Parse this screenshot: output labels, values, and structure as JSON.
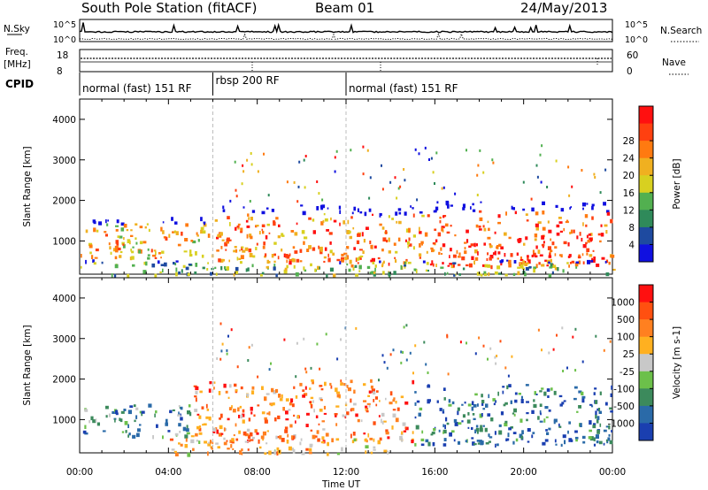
{
  "header": {
    "title": "South Pole Station (fitACF)",
    "beam": "Beam 01",
    "date": "24/May/2013"
  },
  "panel_labels": {
    "nsky": "N.Sky",
    "freq_line1": "Freq.",
    "freq_line2": "[MHz]",
    "cpid": "CPID",
    "nsearch": "N.Search",
    "nave": "Nave"
  },
  "noise_axis": {
    "top": "10^5",
    "bottom": "10^0"
  },
  "freq_axis": {
    "top": "18",
    "bottom": "8"
  },
  "nave_axis": {
    "top": "60",
    "bottom": "0"
  },
  "cpid_segments": [
    {
      "label": "normal (fast) 151 RF",
      "start_h": 0,
      "end_h": 6
    },
    {
      "label": "rbsp 200 RF",
      "start_h": 6,
      "end_h": 12
    },
    {
      "label": "normal (fast) 151 RF",
      "start_h": 12,
      "end_h": 24
    }
  ],
  "chart_data": [
    {
      "type": "heatmap",
      "title": "",
      "xlabel": "Time UT",
      "ylabel": "Slant Range [km]",
      "xlim": [
        0,
        24
      ],
      "ylim": [
        180,
        4500
      ],
      "x_ticks": [
        "00:00",
        "04:00",
        "08:00",
        "12:00",
        "16:00",
        "20:00",
        "00:00"
      ],
      "y_ticks": [
        "1000",
        "2000",
        "3000",
        "4000"
      ],
      "colorbar": {
        "label": "Power [dB]",
        "ticks": [
          "4",
          "8",
          "12",
          "16",
          "20",
          "24",
          "28"
        ],
        "colors": [
          "#1010e0",
          "#1e4aa0",
          "#2f8a5a",
          "#52b050",
          "#d8d020",
          "#f0b020",
          "#ff7a10",
          "#ff4010",
          "#ff1010"
        ]
      },
      "echo_regions": [
        {
          "t0": 0.0,
          "t1": 6.0,
          "r0": 600,
          "r1": 1600,
          "level": 5
        },
        {
          "t0": 6.0,
          "t1": 12.0,
          "r0": 500,
          "r1": 1900,
          "level": 6
        },
        {
          "t0": 12.0,
          "t1": 16.0,
          "r0": 400,
          "r1": 1900,
          "level": 6
        },
        {
          "t0": 16.0,
          "t1": 24.0,
          "r0": 400,
          "r1": 2000,
          "level": 7
        },
        {
          "t0": 0.0,
          "t1": 24.0,
          "r0": 180,
          "r1": 550,
          "level": 3
        }
      ]
    },
    {
      "type": "heatmap",
      "title": "",
      "xlabel": "Time UT",
      "ylabel": "Slant Range [km]",
      "xlim": [
        0,
        24
      ],
      "ylim": [
        180,
        4500
      ],
      "x_ticks": [
        "00:00",
        "04:00",
        "08:00",
        "12:00",
        "16:00",
        "20:00",
        "00:00"
      ],
      "y_ticks": [
        "1000",
        "2000",
        "3000",
        "4000"
      ],
      "colorbar": {
        "label": "Velocity [m s-1]",
        "ticks": [
          "1000",
          "500",
          "100",
          "25",
          "-25",
          "-100",
          "-500",
          "-1000"
        ],
        "colors": [
          "#1a3fb0",
          "#2a6aa8",
          "#3c8a5c",
          "#6cc04a",
          "#c8c8c8",
          "#ffb020",
          "#ff8020",
          "#ff5010",
          "#ff1010"
        ]
      },
      "echo_regions": [
        {
          "t0": 0.0,
          "t1": 5.0,
          "r0": 600,
          "r1": 1400,
          "level": 2
        },
        {
          "t0": 5.0,
          "t1": 15.0,
          "r0": 500,
          "r1": 2000,
          "level": 6
        },
        {
          "t0": 15.0,
          "t1": 24.0,
          "r0": 400,
          "r1": 1900,
          "level": 1
        },
        {
          "t0": 4.0,
          "t1": 14.0,
          "r0": 180,
          "r1": 550,
          "level": 5
        }
      ]
    }
  ],
  "colors": {
    "axis": "#000000",
    "gap_line": "#bdbdbd"
  }
}
